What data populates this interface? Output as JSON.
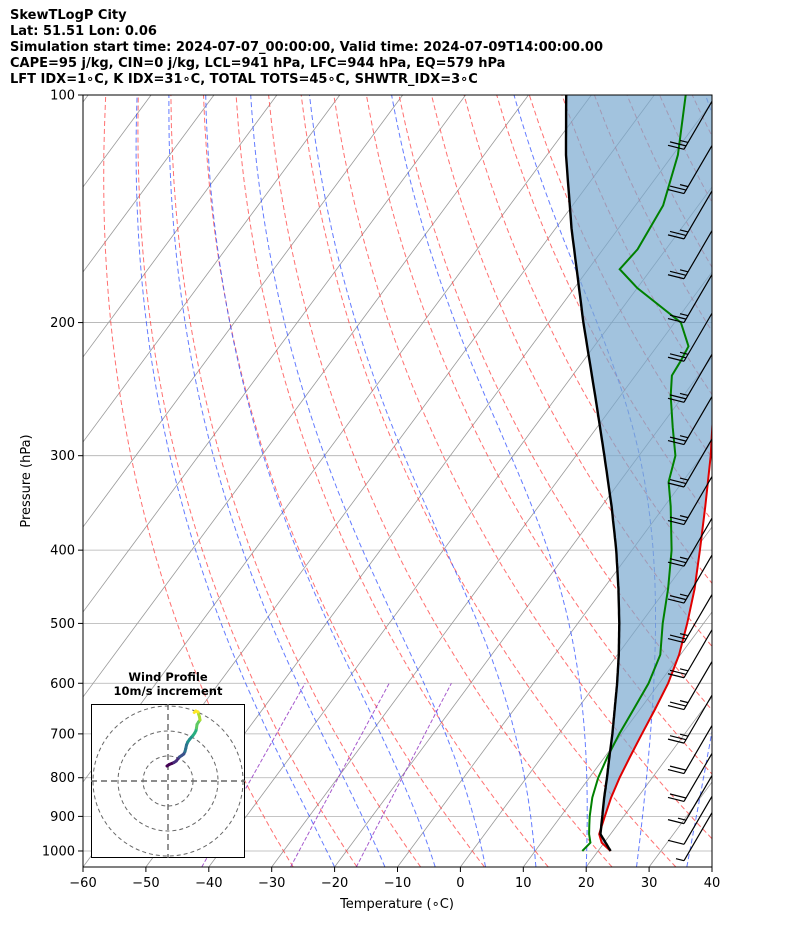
{
  "header": {
    "line1": "SkewTLogP City",
    "line2": "Lat: 51.51   Lon: 0.06",
    "line3": "Simulation start time: 2024-07-07_00:00:00, Valid time: 2024-07-09T14:00:00.00",
    "line4": "CAPE=95 j/kg, CIN=0 j/kg, LCL=941 hPa, LFC=944 hPa, EQ=579 hPa",
    "line5": "LFT IDX=1∘C, K IDX=31∘C, TOTAL TOTS=45∘C, SHWTR_IDX=3∘C"
  },
  "chart_data": {
    "type": "skewt-logp",
    "xlabel": "Temperature (∘C)",
    "ylabel": "Pressure (hPa)",
    "xlim": [
      -60,
      40
    ],
    "ylim_hpa": [
      1050,
      100
    ],
    "x_ticks": [
      -60,
      -50,
      -40,
      -30,
      -20,
      -10,
      0,
      10,
      20,
      30,
      40
    ],
    "x_tick_labels": [
      "−60",
      "−50",
      "−40",
      "−30",
      "−20",
      "−10",
      "0",
      "10",
      "20",
      "30",
      "40"
    ],
    "y_ticks": [
      1000,
      900,
      800,
      700,
      600,
      500,
      400,
      300,
      200,
      100
    ],
    "y_tick_labels": [
      "1000",
      "900",
      "800",
      "700",
      "600",
      "500",
      "400",
      "300",
      "200",
      "100"
    ],
    "colors": {
      "temperature": "#e00000",
      "dewpoint": "#008000",
      "parcel": "#000000",
      "cape_fill": "#7aa9d0",
      "dry_adiabat": "#ff4040",
      "moist_adiabat": "#3050ff",
      "mixing_ratio": "#9030c0",
      "isotherm": "#999999"
    },
    "temperature_profile": [
      {
        "p": 1000,
        "t": 22
      },
      {
        "p": 975,
        "t": 19.6
      },
      {
        "p": 950,
        "t": 18.2
      },
      {
        "p": 925,
        "t": 17.6
      },
      {
        "p": 900,
        "t": 17.0
      },
      {
        "p": 850,
        "t": 15.8
      },
      {
        "p": 800,
        "t": 14.8
      },
      {
        "p": 750,
        "t": 14.0
      },
      {
        "p": 700,
        "t": 13.2
      },
      {
        "p": 650,
        "t": 12.4
      },
      {
        "p": 600,
        "t": 11.4
      },
      {
        "p": 550,
        "t": 9.8
      },
      {
        "p": 500,
        "t": 7.4
      },
      {
        "p": 450,
        "t": 4.5
      },
      {
        "p": 400,
        "t": 0.8
      },
      {
        "p": 350,
        "t": -3.5
      },
      {
        "p": 300,
        "t": -8.6
      },
      {
        "p": 275,
        "t": -11.7
      },
      {
        "p": 250,
        "t": -15.0
      },
      {
        "p": 235,
        "t": -17.5
      },
      {
        "p": 225,
        "t": -16.9
      },
      {
        "p": 215,
        "t": -15.8
      },
      {
        "p": 200,
        "t": -13.8
      },
      {
        "p": 185,
        "t": -11.2
      },
      {
        "p": 175,
        "t": -8.7
      },
      {
        "p": 165,
        "t": -6.3
      },
      {
        "p": 160,
        "t": -5.8
      },
      {
        "p": 150,
        "t": -5.5
      },
      {
        "p": 135,
        "t": -7.4
      },
      {
        "p": 125,
        "t": -10.1
      },
      {
        "p": 115,
        "t": -14.0
      },
      {
        "p": 108,
        "t": -17.4
      },
      {
        "p": 100,
        "t": -22.0
      }
    ],
    "dewpoint_profile": [
      {
        "p": 1000,
        "td": 17.5
      },
      {
        "p": 975,
        "td": 17.8
      },
      {
        "p": 950,
        "td": 16.6
      },
      {
        "p": 925,
        "td": 15.6
      },
      {
        "p": 900,
        "td": 14.6
      },
      {
        "p": 850,
        "td": 12.8
      },
      {
        "p": 800,
        "td": 11.4
      },
      {
        "p": 750,
        "td": 10.4
      },
      {
        "p": 700,
        "td": 9.6
      },
      {
        "p": 650,
        "td": 9.0
      },
      {
        "p": 600,
        "td": 8.3
      },
      {
        "p": 550,
        "td": 6.8
      },
      {
        "p": 500,
        "td": 3.5
      },
      {
        "p": 450,
        "td": 0.3
      },
      {
        "p": 400,
        "td": -3.7
      },
      {
        "p": 350,
        "td": -9.0
      },
      {
        "p": 325,
        "td": -12.2
      },
      {
        "p": 300,
        "td": -14.2
      },
      {
        "p": 275,
        "td": -18.0
      },
      {
        "p": 250,
        "td": -22.0
      },
      {
        "p": 235,
        "td": -24.2
      },
      {
        "p": 225,
        "td": -24.5
      },
      {
        "p": 215,
        "td": -25.0
      },
      {
        "p": 200,
        "td": -29.0
      },
      {
        "p": 180,
        "td": -40.0
      },
      {
        "p": 170,
        "td": -45.0
      },
      {
        "p": 160,
        "td": -44.5
      },
      {
        "p": 140,
        "td": -45.6
      },
      {
        "p": 120,
        "td": -49.2
      },
      {
        "p": 100,
        "td": -55.0
      }
    ],
    "parcel_profile": [
      {
        "p": 1000,
        "t": 22
      },
      {
        "p": 950,
        "t": 18.4
      },
      {
        "p": 900,
        "t": 16.6
      },
      {
        "p": 850,
        "t": 14.7
      },
      {
        "p": 800,
        "t": 12.8
      },
      {
        "p": 750,
        "t": 10.7
      },
      {
        "p": 700,
        "t": 8.5
      },
      {
        "p": 650,
        "t": 6.0
      },
      {
        "p": 600,
        "t": 3.3
      },
      {
        "p": 550,
        "t": 0.2
      },
      {
        "p": 500,
        "t": -3.4
      },
      {
        "p": 450,
        "t": -7.6
      },
      {
        "p": 400,
        "t": -12.5
      },
      {
        "p": 350,
        "t": -18.4
      },
      {
        "p": 300,
        "t": -25.5
      },
      {
        "p": 250,
        "t": -34.0
      },
      {
        "p": 200,
        "t": -44.5
      },
      {
        "p": 150,
        "t": -57.5
      },
      {
        "p": 120,
        "t": -67.0
      },
      {
        "p": 100,
        "t": -74.0
      }
    ],
    "wind_barbs": [
      {
        "p": 1030,
        "speed_kt": 5
      },
      {
        "p": 980,
        "speed_kt": 10
      },
      {
        "p": 920,
        "speed_kt": 15
      },
      {
        "p": 860,
        "speed_kt": 20
      },
      {
        "p": 790,
        "speed_kt": 20
      },
      {
        "p": 720,
        "speed_kt": 25
      },
      {
        "p": 650,
        "speed_kt": 25
      },
      {
        "p": 590,
        "speed_kt": 25
      },
      {
        "p": 530,
        "speed_kt": 25
      },
      {
        "p": 470,
        "speed_kt": 25
      },
      {
        "p": 420,
        "speed_kt": 25
      },
      {
        "p": 370,
        "speed_kt": 25
      },
      {
        "p": 330,
        "speed_kt": 25
      },
      {
        "p": 290,
        "speed_kt": 25
      },
      {
        "p": 255,
        "speed_kt": 25
      },
      {
        "p": 225,
        "speed_kt": 25
      },
      {
        "p": 200,
        "speed_kt": 25
      },
      {
        "p": 175,
        "speed_kt": 25
      },
      {
        "p": 155,
        "speed_kt": 25
      },
      {
        "p": 135,
        "speed_kt": 25
      },
      {
        "p": 118,
        "speed_kt": 25
      }
    ],
    "hodograph": {
      "title": "Wind Profile",
      "subtitle": "10m/s increment",
      "rings_ms": [
        10,
        20,
        30
      ],
      "points_uv": [
        [
          -0.4,
          6.0
        ],
        [
          0.5,
          6.6
        ],
        [
          1.5,
          7.0
        ],
        [
          2.4,
          7.4
        ],
        [
          3.3,
          8.0
        ],
        [
          3.9,
          8.8
        ],
        [
          4.6,
          9.6
        ],
        [
          5.5,
          10.2
        ],
        [
          6.3,
          10.8
        ],
        [
          6.8,
          11.8
        ],
        [
          7.1,
          13.0
        ],
        [
          7.4,
          14.4
        ],
        [
          7.9,
          15.6
        ],
        [
          8.6,
          16.6
        ],
        [
          9.3,
          17.4
        ],
        [
          10.0,
          18.2
        ],
        [
          10.7,
          19.2
        ],
        [
          11.2,
          20.2
        ],
        [
          11.4,
          21.2
        ],
        [
          11.6,
          22.6
        ],
        [
          12.2,
          23.6
        ],
        [
          12.8,
          24.4
        ],
        [
          12.6,
          25.6
        ],
        [
          12.3,
          26.6
        ],
        [
          12.0,
          27.6
        ],
        [
          11.1,
          28.0
        ],
        [
          10.5,
          27.4
        ]
      ]
    }
  }
}
